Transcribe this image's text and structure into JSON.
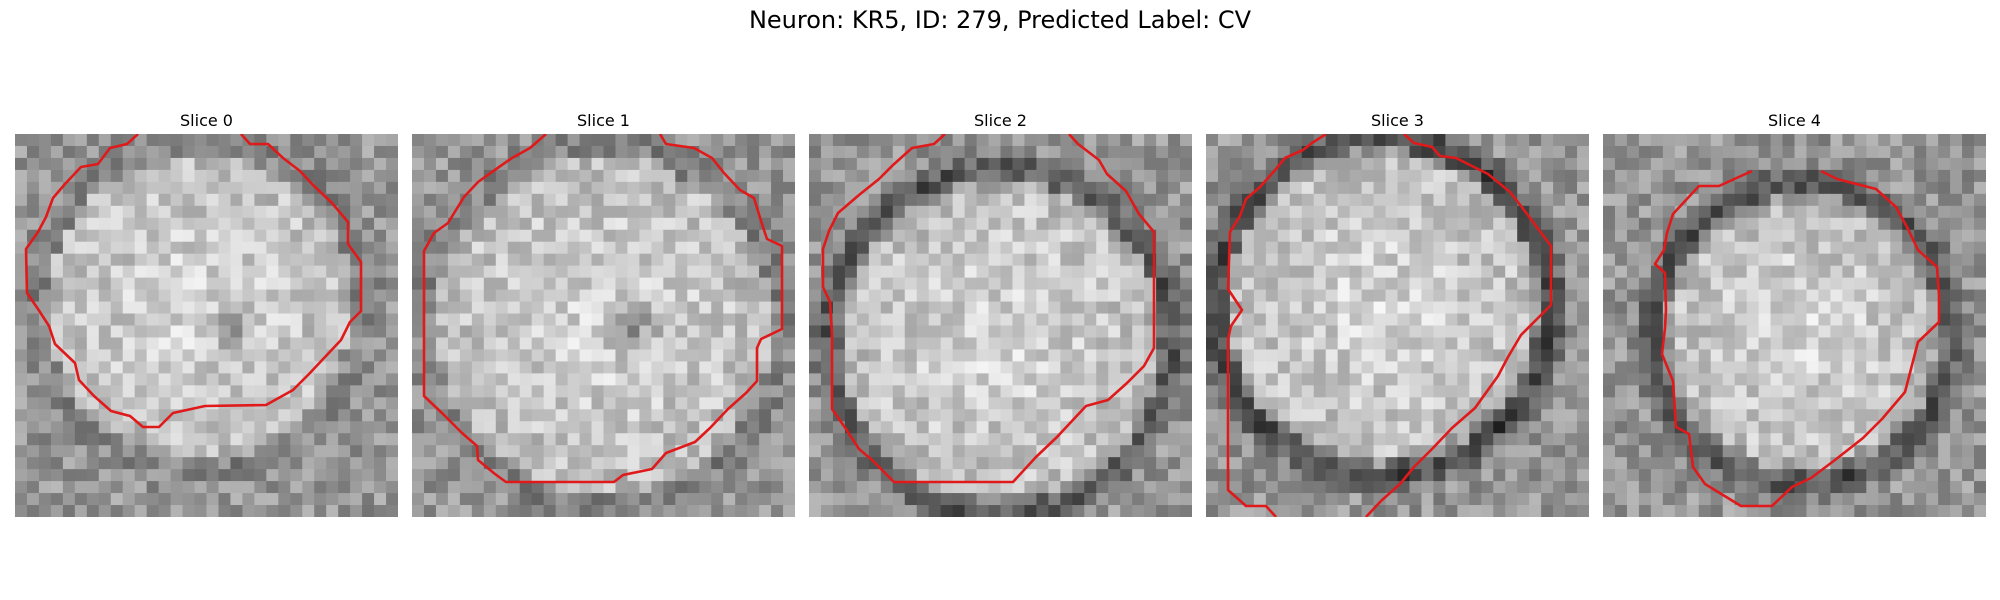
{
  "figure": {
    "title": "Neuron: KR5, ID: 279, Predicted Label: CV"
  },
  "panels": [
    {
      "label": "Slice 0"
    },
    {
      "label": "Slice 1"
    },
    {
      "label": "Slice 2"
    },
    {
      "label": "Slice 3"
    },
    {
      "label": "Slice 4"
    }
  ],
  "colors": {
    "contour": "#e0191b",
    "background": "#ffffff"
  }
}
